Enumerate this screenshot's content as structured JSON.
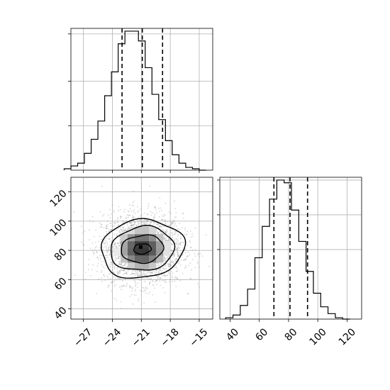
{
  "chart_data": [
    {
      "type": "histogram",
      "panel": "top-left",
      "variable": "x",
      "bin_edges": [
        -29,
        -28.3,
        -27.6,
        -26.9,
        -26.2,
        -25.5,
        -24.8,
        -24.1,
        -23.4,
        -22.7,
        -22.0,
        -21.3,
        -20.6,
        -19.9,
        -19.2,
        -18.5,
        -17.8,
        -17.1,
        -16.4,
        -15.7,
        -15.0,
        -14.3
      ],
      "counts": [
        1,
        3,
        5,
        12,
        22,
        35,
        53,
        70,
        90,
        99,
        99,
        92,
        73,
        54,
        36,
        21,
        11,
        5,
        2,
        1,
        0
      ],
      "quantiles": [
        -23.0,
        -20.9,
        -18.8
      ],
      "xlim": [
        -28.3,
        -13.6
      ],
      "xticks": [
        -27,
        -24,
        -21,
        -18,
        -15
      ],
      "yticks_present": true,
      "grid": true
    },
    {
      "type": "heatmap",
      "panel": "bottom-left",
      "variables": [
        "x",
        "y"
      ],
      "xlim": [
        -28.3,
        -13.6
      ],
      "ylim": [
        33,
        130
      ],
      "xticks": [
        -27,
        -24,
        -21,
        -18,
        -15
      ],
      "xtick_labels": [
        "−27",
        "−24",
        "−21",
        "−18",
        "−15"
      ],
      "yticks": [
        40,
        60,
        80,
        100,
        120
      ],
      "ytick_labels": [
        "40",
        "60",
        "80",
        "100",
        "120"
      ],
      "center": [
        -20.9,
        81
      ],
      "contours": [
        {
          "level": "outer",
          "rx": 4.3,
          "ry": 20
        },
        {
          "level": "middle",
          "rx": 3.3,
          "ry": 15
        },
        {
          "level": "inner",
          "rx": 2.2,
          "ry": 9.5
        },
        {
          "level": "core",
          "rx": 0.9,
          "ry": 3.5
        }
      ],
      "grid": true
    },
    {
      "type": "histogram",
      "panel": "bottom-right",
      "variable": "y",
      "bin_edges": [
        37,
        42,
        47,
        52,
        57,
        62,
        67,
        72,
        77,
        82,
        87,
        92,
        97,
        102,
        107,
        112,
        117,
        122
      ],
      "counts": [
        1,
        3,
        10,
        22,
        45,
        68,
        88,
        102,
        100,
        80,
        57,
        35,
        19,
        9,
        4,
        1,
        0
      ],
      "quantiles": [
        70,
        81,
        93
      ],
      "xlim": [
        33,
        130
      ],
      "xticks": [
        40,
        60,
        80,
        100,
        120
      ],
      "xtick_labels": [
        "40",
        "60",
        "80",
        "100",
        "120"
      ],
      "yticks_present": true,
      "grid": true
    }
  ]
}
